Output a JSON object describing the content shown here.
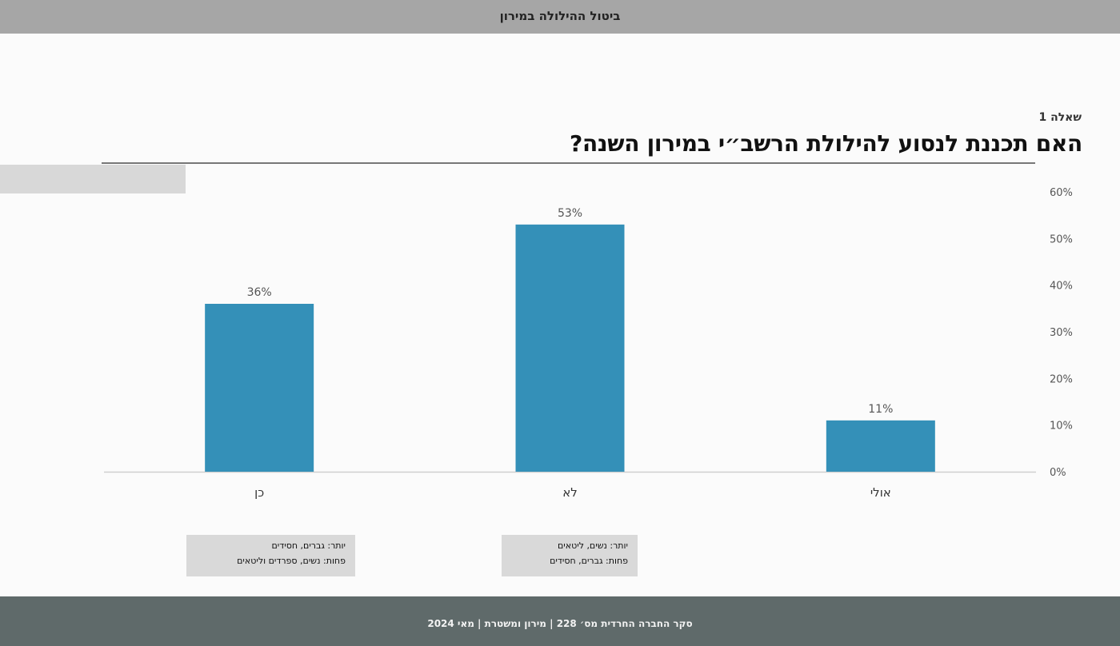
{
  "header": {
    "title": "ביטול ההילולה במירון"
  },
  "question": {
    "number_label": "שאלה 1",
    "title": "האם תכננת לנסוע להילולת הרשב״י במירון השנה?"
  },
  "chart_data": {
    "type": "bar",
    "categories": [
      "כן",
      "לא",
      "אולי"
    ],
    "values": [
      36,
      53,
      11
    ],
    "value_labels": [
      "36%",
      "53%",
      "11%"
    ],
    "y_ticks": [
      "0%",
      "10%",
      "20%",
      "30%",
      "40%",
      "50%",
      "60%"
    ],
    "ylim": [
      0,
      60
    ],
    "grid": false,
    "bar_color": "#3490b8",
    "title": "",
    "xlabel": "",
    "ylabel": ""
  },
  "notes": [
    {
      "line1": "יותר: גברים, חסידים",
      "line2": "פחות: נשים, ספרדים וליטאים"
    },
    {
      "line1": "יותר: נשים, ליטאים",
      "line2": "פחות: גברים, חסידים"
    }
  ],
  "footer": {
    "text": "סקר החברה החרדית מס׳ 228 | מירון ומשטרת | מאי 2024"
  }
}
